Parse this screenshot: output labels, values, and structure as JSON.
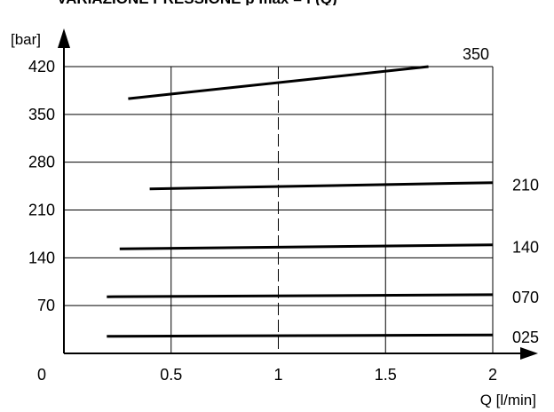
{
  "chart_data": {
    "type": "line",
    "title": "VARIAZIONE PRESSIONE p max = f (Q)",
    "xlabel": "Q [l/min]",
    "ylabel": "[bar]",
    "origin_label": "0",
    "xlim": [
      0,
      2
    ],
    "ylim": [
      0,
      420
    ],
    "x_ticks": [
      {
        "value": 0.5,
        "label": "0.5"
      },
      {
        "value": 1,
        "label": "1"
      },
      {
        "value": 1.5,
        "label": "1.5"
      },
      {
        "value": 2,
        "label": "2"
      }
    ],
    "y_ticks": [
      {
        "value": 70,
        "label": "70"
      },
      {
        "value": 140,
        "label": "140"
      },
      {
        "value": 210,
        "label": "210"
      },
      {
        "value": 280,
        "label": "280"
      },
      {
        "value": 350,
        "label": "350"
      },
      {
        "value": 420,
        "label": "420"
      }
    ],
    "grid": true,
    "reference_line": {
      "x": 1,
      "style": "dashed"
    },
    "series": [
      {
        "name": "350",
        "x": [
          0.3,
          1.7
        ],
        "y": [
          373,
          420
        ]
      },
      {
        "name": "210",
        "x": [
          0.4,
          2.0
        ],
        "y": [
          241,
          250
        ]
      },
      {
        "name": "140",
        "x": [
          0.26,
          2.0
        ],
        "y": [
          153,
          159
        ]
      },
      {
        "name": "070",
        "x": [
          0.2,
          2.0
        ],
        "y": [
          83,
          86
        ]
      },
      {
        "name": "025",
        "x": [
          0.2,
          2.0
        ],
        "y": [
          25,
          27
        ]
      }
    ]
  }
}
